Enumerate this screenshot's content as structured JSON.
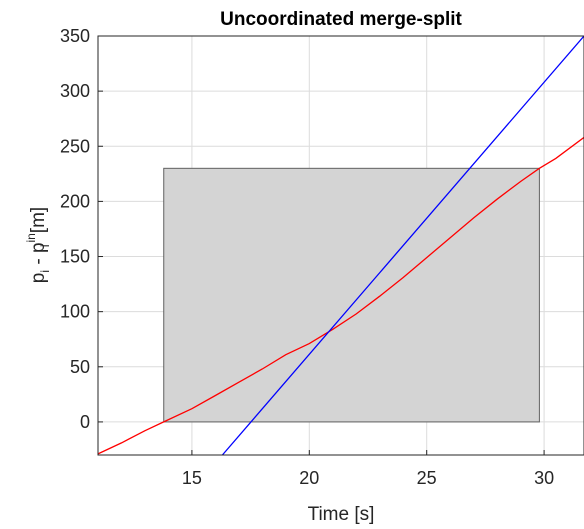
{
  "chart_data": {
    "type": "line",
    "title": "Uncoordinated merge-split",
    "xlabel": "Time [s]",
    "ylabel": {
      "main": "p",
      "sub1": "i",
      "mid": " - p",
      "sup": "in",
      "sub2": "i",
      "unit": " [m]"
    },
    "xlim": [
      11,
      31.7
    ],
    "ylim": [
      -30,
      350
    ],
    "xticks": [
      15,
      20,
      25,
      30
    ],
    "yticks": [
      0,
      50,
      100,
      150,
      200,
      250,
      300,
      350
    ],
    "grid": true,
    "region": {
      "x": [
        13.8,
        29.8
      ],
      "y": [
        0,
        230
      ],
      "fill": "#d4d4d4",
      "stroke": "#606060"
    },
    "series": [
      {
        "color": "#ff0000",
        "points": [
          [
            11,
            -29
          ],
          [
            12,
            -19
          ],
          [
            13,
            -8
          ],
          [
            13.8,
            0
          ],
          [
            15,
            12
          ],
          [
            16,
            24
          ],
          [
            17,
            36
          ],
          [
            18,
            48
          ],
          [
            19,
            61
          ],
          [
            20,
            71
          ],
          [
            21,
            84
          ],
          [
            22,
            98
          ],
          [
            23,
            114
          ],
          [
            24,
            131
          ],
          [
            25,
            149
          ],
          [
            26,
            167
          ],
          [
            27,
            185
          ],
          [
            28,
            202
          ],
          [
            29,
            218
          ],
          [
            29.8,
            230
          ],
          [
            30.5,
            239
          ],
          [
            31.7,
            258
          ]
        ]
      },
      {
        "color": "#0000ff",
        "points": [
          [
            16.3,
            -30
          ],
          [
            31.7,
            350
          ]
        ]
      }
    ]
  }
}
